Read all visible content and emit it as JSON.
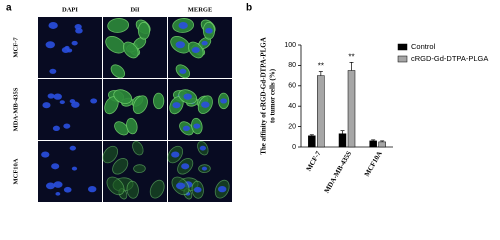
{
  "panel_a": {
    "label": "a",
    "columns": [
      "DAPI",
      "DiI",
      "MERGE"
    ],
    "rows": [
      "MCF-7",
      "MDA-MB-435S",
      "MCF10A"
    ]
  },
  "chart_data": {
    "type": "bar",
    "label": "b",
    "y_label": [
      "The affinity of cRGD-Gd-DTPA-PLGA",
      "to tumor cells (%)"
    ],
    "categories": [
      "MCF-7",
      "MDA-MB-435S",
      "MCF10A"
    ],
    "series": [
      {
        "name": "Control",
        "color": "#000000",
        "values": [
          11,
          13,
          6
        ],
        "errors": [
          1,
          3,
          1
        ]
      },
      {
        "name": "cRGD-Gd-DTPA-PLGA",
        "color": "#a6a6a6",
        "values": [
          70,
          75,
          5
        ],
        "errors": [
          4,
          8,
          1
        ]
      }
    ],
    "significance": [
      "**",
      "**",
      null
    ],
    "ylim": [
      0,
      100
    ],
    "yticks": [
      0,
      20,
      40,
      60,
      80,
      100
    ],
    "legend": "top-right"
  }
}
